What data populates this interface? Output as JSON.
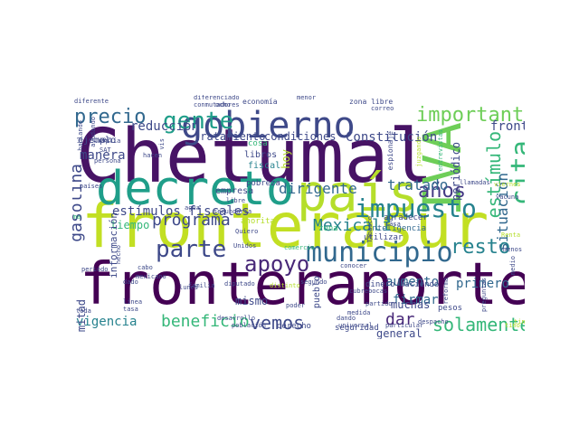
{
  "colors": {
    "background": "#ffffff",
    "palette": [
      "#440154",
      "#482878",
      "#3e4989",
      "#31688e",
      "#26828e",
      "#1f9e89",
      "#35b779",
      "#6ece58",
      "#b5de2b",
      "#fde725"
    ]
  },
  "word_cloud": {
    "words": [
      {
        "text": "Chetumal",
        "color": "#471365"
      },
      {
        "text": "fronterasur",
        "color": "#c2df23"
      },
      {
        "text": "fronteranorte",
        "color": "#440154"
      },
      {
        "text": "decreto",
        "color": "#1f9e89"
      },
      {
        "text": "país",
        "color": "#b5de2b"
      },
      {
        "text": "IVA",
        "color": "#6ece58"
      },
      {
        "text": "gobierno",
        "color": "#3e4989"
      },
      {
        "text": "impuesto",
        "color": "#26828e"
      },
      {
        "text": "municipio",
        "color": "#31688e"
      },
      {
        "text": "gente",
        "color": "#1f9e89"
      },
      {
        "text": "apoyo",
        "color": "#482878"
      },
      {
        "text": "cita",
        "color": "#35b779"
      },
      {
        "text": "parte",
        "color": "#3e4989"
      },
      {
        "text": "importante",
        "color": "#6ece58"
      },
      {
        "text": "estímulo",
        "color": "#35b779"
      },
      {
        "text": "precio",
        "color": "#31688e"
      },
      {
        "text": "programa",
        "color": "#3e4989"
      },
      {
        "text": "resto",
        "color": "#26828e"
      },
      {
        "text": "solamente",
        "color": "#35b779"
      },
      {
        "text": "años",
        "color": "#443a83"
      },
      {
        "text": "beneficio",
        "color": "#35b779"
      },
      {
        "text": "vemos",
        "color": "#3e4989"
      },
      {
        "text": "dar",
        "color": "#482878"
      },
      {
        "text": "Mexicali",
        "color": "#26828e"
      },
      {
        "text": "gasolina",
        "color": "#3e4989"
      },
      {
        "text": "situación",
        "color": "#31688e"
      },
      {
        "text": "tratado",
        "color": "#31688e"
      },
      {
        "text": "firmar",
        "color": "#31688e"
      },
      {
        "text": "dirigente",
        "color": "#31688e"
      },
      {
        "text": "vigencia",
        "color": "#26828e"
      },
      {
        "text": "estímulos fiscales",
        "color": "#3e4989"
      },
      {
        "text": "reducción",
        "color": "#3e4989"
      },
      {
        "text": "frontera",
        "color": "#3e4989"
      },
      {
        "text": "Constitución",
        "color": "#3e4989"
      },
      {
        "text": "condiciones",
        "color": "#3e4989"
      },
      {
        "text": "tratamiento",
        "color": "#3e4989"
      },
      {
        "text": "primero",
        "color": "#31688e"
      },
      {
        "text": "aumento",
        "color": "#31688e"
      },
      {
        "text": "muchas",
        "color": "#3e4989"
      },
      {
        "text": "mismo",
        "color": "#3e4989"
      },
      {
        "text": "hoy",
        "color": "#b5de2b"
      },
      {
        "text": "periódico",
        "color": "#3e4989"
      },
      {
        "text": "manera",
        "color": "#3e4989"
      },
      {
        "text": "ejemplo",
        "color": "#3e4989"
      },
      {
        "text": "tiempo",
        "color": "#35b779"
      },
      {
        "text": "mitad",
        "color": "#3e4989"
      },
      {
        "text": "información",
        "color": "#3e4989"
      },
      {
        "text": "general",
        "color": "#3e4989"
      },
      {
        "text": "pueblo",
        "color": "#3e4989"
      },
      {
        "text": "empresa",
        "color": "#3e4989"
      },
      {
        "text": "libros",
        "color": "#3e4989"
      },
      {
        "text": "fiscal",
        "color": "#26828e"
      },
      {
        "text": "pobreza",
        "color": "#3e4989"
      },
      {
        "text": "derecho",
        "color": "#3e4989"
      },
      {
        "text": "dinero",
        "color": "#3e4989"
      },
      {
        "text": "haciendo",
        "color": "#3e4989"
      },
      {
        "text": "pesos",
        "color": "#3e4989"
      },
      {
        "text": "seguridad",
        "color": "#3e4989"
      },
      {
        "text": "Inteligencia",
        "color": "#31688e"
      },
      {
        "text": "utilizar",
        "color": "#3e4989"
      },
      {
        "text": "agradecer",
        "color": "#3e4989"
      },
      {
        "text": "zona",
        "color": "#35b779"
      },
      {
        "text": "cosa",
        "color": "#35b779"
      },
      {
        "text": "menor",
        "color": "#3e4989"
      },
      {
        "text": "economía",
        "color": "#3e4989"
      },
      {
        "text": "zona libre",
        "color": "#3e4989"
      },
      {
        "text": "diferenciado",
        "color": "#3e4989"
      },
      {
        "text": "diferente",
        "color": "#3e4989"
      },
      {
        "text": "correo",
        "color": "#3e4989"
      },
      {
        "text": "espionaje",
        "color": "#3e4989"
      },
      {
        "text": "llamadas",
        "color": "#3e4989"
      },
      {
        "text": "vacuna",
        "color": "#3e4989"
      },
      {
        "text": "vez",
        "color": "#3e4989"
      },
      {
        "text": "hablando",
        "color": "#3e4989"
      },
      {
        "text": "ayudando",
        "color": "#3e4989"
      },
      {
        "text": "persona",
        "color": "#3e4989"
      },
      {
        "text": "hacen",
        "color": "#3e4989"
      },
      {
        "text": "amplía",
        "color": "#3e4989"
      },
      {
        "text": "SAT",
        "color": "#3e4989"
      },
      {
        "text": "países",
        "color": "#3e4989"
      },
      {
        "text": "misma",
        "color": "#35b779"
      },
      {
        "text": "agua",
        "color": "#3e4989"
      },
      {
        "text": "libre",
        "color": "#3e4989"
      },
      {
        "text": "secundaria",
        "color": "#3e4989"
      },
      {
        "text": "Quiero",
        "color": "#3e4989"
      },
      {
        "text": "Unidos",
        "color": "#3e4989"
      },
      {
        "text": "diputado",
        "color": "#3e4989"
      },
      {
        "text": "lunes",
        "color": "#3e4989"
      },
      {
        "text": "familia",
        "color": "#3e4989"
      },
      {
        "text": "periodo",
        "color": "#3e4989"
      },
      {
        "text": "cabo",
        "color": "#3e4989"
      },
      {
        "text": "mexicano",
        "color": "#3e4989"
      },
      {
        "text": "dado",
        "color": "#3e4989"
      },
      {
        "text": "línea",
        "color": "#3e4989"
      },
      {
        "text": "tasa",
        "color": "#3e4989"
      },
      {
        "text": "toda",
        "color": "#3e4989"
      },
      {
        "text": "desarrollo",
        "color": "#3e4989"
      },
      {
        "text": "población",
        "color": "#3e4989"
      },
      {
        "text": "poder",
        "color": "#3e4989"
      },
      {
        "text": "segundo",
        "color": "#3e4989"
      },
      {
        "text": "partido",
        "color": "#3e4989"
      },
      {
        "text": "medida",
        "color": "#3e4989"
      },
      {
        "text": "dando",
        "color": "#3e4989"
      },
      {
        "text": "universal",
        "color": "#3e4989"
      },
      {
        "text": "particular",
        "color": "#3e4989"
      },
      {
        "text": "despacho",
        "color": "#3e4989"
      },
      {
        "text": "reforma",
        "color": "#3e4989"
      },
      {
        "text": "preguntas",
        "color": "#3e4989"
      },
      {
        "text": "menos",
        "color": "#3e4989"
      },
      {
        "text": "medio",
        "color": "#3e4989"
      },
      {
        "text": "tino",
        "color": "#b5de2b"
      },
      {
        "text": "cubrebocas",
        "color": "#3e4989"
      },
      {
        "text": "conocer",
        "color": "#3e4989"
      },
      {
        "text": "casa",
        "color": "#3e4989"
      },
      {
        "text": "Tabasco",
        "color": "#3e4989"
      },
      {
        "text": "comercio",
        "color": "#35b779"
      },
      {
        "text": "ahorita",
        "color": "#b5de2b"
      },
      {
        "text": "hecho",
        "color": "#3e4989"
      },
      {
        "text": "Renta",
        "color": "#b5de2b"
      },
      {
        "text": "viernes",
        "color": "#b5de2b"
      },
      {
        "text": "distinto",
        "color": "#b5de2b"
      },
      {
        "text": "juzgando",
        "color": "#b5de2b"
      },
      {
        "text": "conmutadores",
        "color": "#3e4989"
      },
      {
        "text": "ocho",
        "color": "#3e4989"
      },
      {
        "text": "vis",
        "color": "#3e4989"
      },
      {
        "text": "tino",
        "color": "#b5de2b"
      },
      {
        "text": "ambiente",
        "color": "#b5de2b"
      },
      {
        "text": "entrevistas",
        "color": "#35b779"
      }
    ]
  }
}
